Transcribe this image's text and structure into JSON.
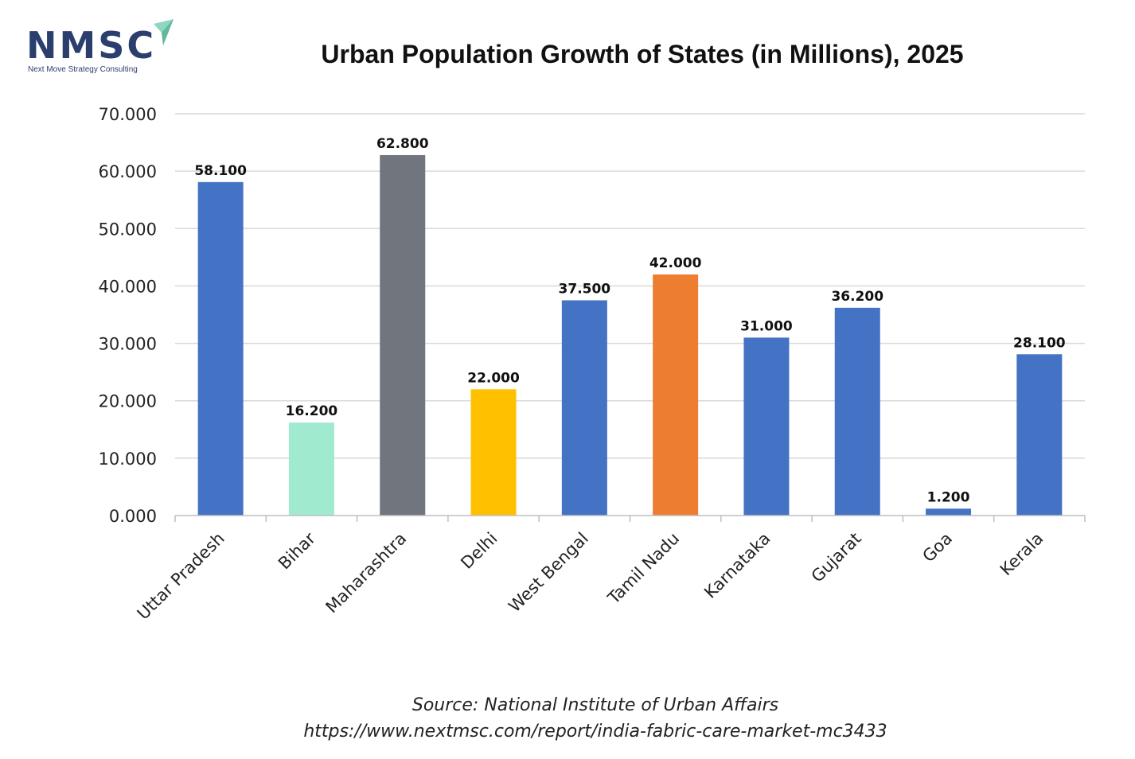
{
  "logo": {
    "name": "NMSC",
    "tagline": "Next Move Strategy Consulting",
    "brand_color": "#2b3f6e",
    "accent_color": "#8fd6c0"
  },
  "source": {
    "line1": "Source: National Institute of Urban Affairs",
    "line2": "https://www.nextmsc.com/report/india-fabric-care-market-mc3433"
  },
  "chart_data": {
    "type": "bar",
    "title": "Urban Population Growth of States (in Millions), 2025",
    "xlabel": "",
    "ylabel": "",
    "categories": [
      "Uttar Pradesh",
      "Bihar",
      "Maharashtra",
      "Delhi",
      "West Bengal",
      "Tamil Nadu",
      "Karnataka",
      "Gujarat",
      "Goa",
      "Kerala"
    ],
    "values": [
      58.1,
      16.2,
      62.8,
      22.0,
      37.5,
      42.0,
      31.0,
      36.2,
      1.2,
      28.1
    ],
    "value_labels": [
      "58.100",
      "16.200",
      "62.800",
      "22.000",
      "37.500",
      "42.000",
      "31.000",
      "36.200",
      "1.200",
      "28.100"
    ],
    "bar_colors": [
      "#4472c4",
      "#a0ead0",
      "#71757e",
      "#ffc000",
      "#4472c4",
      "#ed7d31",
      "#4472c4",
      "#4472c4",
      "#4472c4",
      "#4472c4"
    ],
    "ylim": [
      0,
      70
    ],
    "yticks": [
      0,
      10,
      20,
      30,
      40,
      50,
      60,
      70
    ],
    "ytick_labels": [
      "0.000",
      "10.000",
      "20.000",
      "30.000",
      "40.000",
      "50.000",
      "60.000",
      "70.000"
    ],
    "grid": true,
    "legend": "none",
    "gridline_color": "#d9d9d9"
  }
}
